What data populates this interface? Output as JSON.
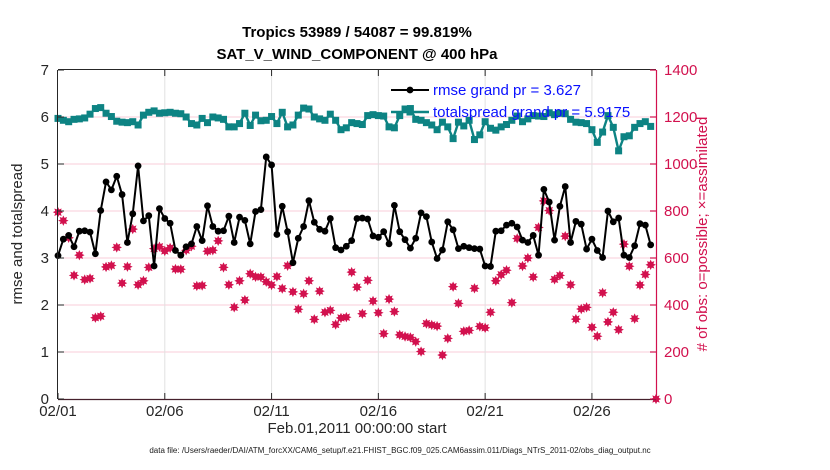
{
  "title": {
    "line1": "Tropics 53989 / 54087 = 99.819%",
    "line2": "SAT_V_WIND_COMPONENT @ 400 hPa"
  },
  "legend": {
    "entries": [
      {
        "label": "rmse grand pr = 3.627",
        "series": "rmse"
      },
      {
        "label": "totalspread grand pr = 5.9175",
        "series": "totalspread"
      }
    ],
    "text_color": "#0910ff"
  },
  "footer": "data file: /Users/raeder/DAI/ATM_forcXX/CAM6_setup/f.e21.FHIST_BGC.f09_025.CAM6assim.011/Diags_NTrS_2011-02/obs_diag_output.nc",
  "colors": {
    "rmse": "#000000",
    "totalspread": "#0d8383",
    "obs": "#d2114e",
    "right_axis": "#d2114e",
    "grid_horizontal": "#f9ccd8",
    "grid_vertical": "#e2e2e2",
    "axis_left": "#262626",
    "axis_bottom": "#45202c",
    "tick_label": "#262626"
  },
  "chart_data": {
    "type": "line",
    "title": "Tropics 53989 / 54087 = 99.819%",
    "subtitle": "SAT_V_WIND_COMPONENT @ 400 hPa",
    "xlabel": "Feb.01,2011 00:00:00 start",
    "ylabel_left": "rmse and totalspread",
    "ylabel_right": "# of obs: o=possible; ×=assimilated",
    "ylim_left": [
      0,
      7
    ],
    "ylim_right": [
      0,
      1400
    ],
    "yticks_left": [
      0,
      1,
      2,
      3,
      4,
      5,
      6,
      7
    ],
    "yticks_right": [
      0,
      200,
      400,
      600,
      800,
      1000,
      1200,
      1400
    ],
    "xlim_days": [
      0,
      28
    ],
    "xtick_days": [
      0,
      5,
      10,
      15,
      20,
      25
    ],
    "xtick_labels": [
      "02/01",
      "02/06",
      "02/11",
      "02/16",
      "02/21",
      "02/26"
    ],
    "grid": true,
    "legend_position": "top-right-inside",
    "sample_step_days": 0.25,
    "series": [
      {
        "name": "rmse",
        "axis": "left",
        "marker": "circle",
        "color": "#000000",
        "line": true,
        "start_day": 0,
        "step_days": 0.25,
        "values": [
          3.05,
          3.4,
          3.48,
          3.24,
          3.57,
          3.58,
          3.55,
          3.09,
          4.01,
          4.62,
          4.45,
          4.74,
          4.35,
          3.33,
          3.94,
          4.96,
          3.79,
          3.9,
          2.83,
          4.05,
          3.84,
          3.74,
          3.16,
          3.06,
          3.24,
          3.3,
          3.67,
          3.37,
          4.11,
          3.67,
          3.57,
          3.58,
          3.89,
          3.33,
          3.87,
          3.8,
          3.3,
          3.99,
          4.03,
          5.15,
          4.98,
          3.5,
          4.1,
          3.56,
          2.9,
          3.42,
          3.67,
          4.22,
          3.76,
          3.61,
          3.57,
          3.84,
          3.22,
          3.17,
          3.25,
          3.37,
          3.84,
          3.85,
          3.83,
          3.47,
          3.44,
          3.56,
          3.3,
          4.12,
          3.56,
          3.39,
          3.21,
          3.42,
          3.96,
          3.88,
          3.34,
          2.99,
          3.17,
          3.77,
          3.6,
          3.2,
          3.25,
          3.22,
          3.2,
          3.19,
          2.83,
          2.82,
          3.57,
          3.58,
          3.7,
          3.74,
          3.66,
          3.38,
          3.33,
          3.48,
          3.06,
          4.46,
          4.19,
          3.38,
          4.1,
          4.52,
          3.33,
          3.78,
          3.72,
          3.19,
          3.4,
          3.16,
          3.01,
          4.0,
          3.77,
          3.85,
          3.06,
          3.01,
          3.26,
          3.73,
          3.7,
          3.28
        ]
      },
      {
        "name": "totalspread",
        "axis": "left",
        "marker": "square",
        "color": "#0d8383",
        "line": true,
        "start_day": 0,
        "step_days": 0.25,
        "values": [
          5.97,
          5.93,
          5.9,
          5.95,
          5.96,
          5.98,
          6.06,
          6.18,
          6.2,
          6.08,
          6.01,
          5.91,
          5.89,
          5.88,
          5.9,
          5.83,
          6.04,
          6.1,
          6.13,
          6.08,
          6.09,
          6.1,
          6.08,
          6.07,
          6.0,
          5.86,
          5.83,
          5.97,
          5.88,
          6.0,
          5.98,
          5.95,
          5.79,
          5.79,
          5.86,
          6.08,
          5.82,
          6.04,
          5.92,
          5.93,
          6.01,
          5.86,
          6.1,
          5.79,
          5.83,
          6.04,
          6.19,
          6.17,
          6.0,
          5.96,
          5.93,
          6.06,
          5.93,
          5.73,
          5.77,
          5.88,
          5.86,
          5.84,
          6.03,
          6.05,
          6.03,
          6.02,
          5.79,
          5.77,
          6.03,
          6.17,
          6.18,
          5.95,
          5.93,
          5.88,
          5.83,
          5.73,
          5.89,
          5.79,
          5.54,
          5.89,
          5.81,
          5.93,
          5.52,
          5.62,
          5.9,
          5.76,
          5.72,
          5.79,
          5.84,
          5.93,
          6.02,
          5.9,
          5.96,
          6.03,
          6.02,
          6.01,
          6.09,
          6.05,
          6.08,
          6.07,
          5.95,
          5.89,
          5.88,
          5.86,
          5.73,
          5.46,
          5.68,
          6.03,
          5.78,
          5.28,
          5.58,
          5.6,
          5.78,
          5.86,
          5.9,
          5.8
        ]
      },
      {
        "name": "obs_assimilated",
        "axis": "right",
        "marker": "star",
        "color": "#d2114e",
        "line": false,
        "start_day": 0,
        "step_days": 0.25,
        "values": [
          795,
          759,
          686,
          526,
          612,
          508,
          513,
          346,
          352,
          562,
          568,
          645,
          493,
          563,
          723,
          486,
          503,
          560,
          640,
          648,
          630,
          643,
          553,
          552,
          633,
          650,
          481,
          483,
          629,
          633,
          673,
          560,
          486,
          390,
          503,
          421,
          533,
          520,
          519,
          499,
          485,
          521,
          470,
          567,
          456,
          382,
          448,
          503,
          339,
          459,
          369,
          377,
          317,
          345,
          348,
          540,
          476,
          363,
          505,
          417,
          367,
          278,
          425,
          372,
          273,
          266,
          262,
          244,
          202,
          321,
          315,
          310,
          187,
          258,
          478,
          407,
          288,
          292,
          471,
          309,
          303,
          369,
          503,
          529,
          548,
          410,
          683,
          566,
          600,
          519,
          730,
          843,
          802,
          509,
          526,
          693,
          486,
          340,
          383,
          390,
          305,
          267,
          452,
          328,
          369,
          295,
          659,
          565,
          342,
          485,
          530,
          571,
          0
        ]
      }
    ]
  }
}
